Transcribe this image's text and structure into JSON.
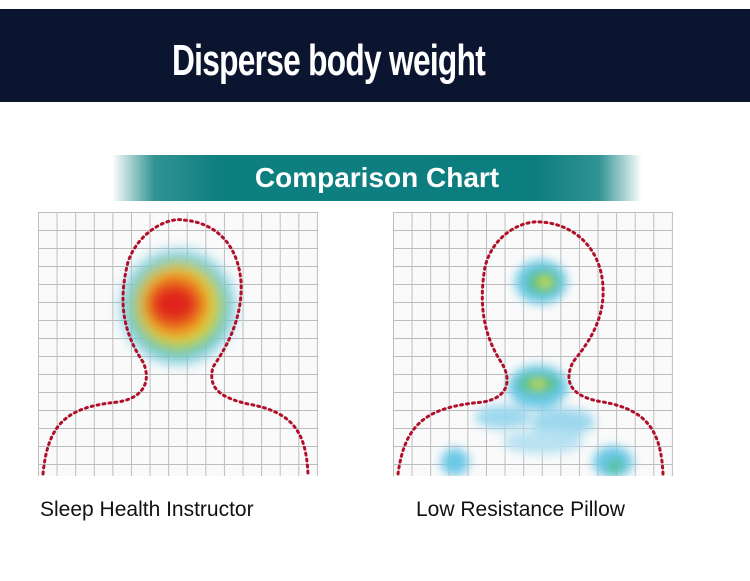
{
  "header": {
    "title": "Disperse body weight"
  },
  "banner": {
    "title": "Comparison Chart"
  },
  "panels": [
    {
      "label": "Sleep Health Instructor",
      "heatmap": "concentrated-head-pressure"
    },
    {
      "label": "Low Resistance Pillow",
      "heatmap": "dispersed-pressure"
    }
  ],
  "colors": {
    "header_bg": "#0b1530",
    "banner": "#0e7f80",
    "outline": "#b0102a"
  }
}
